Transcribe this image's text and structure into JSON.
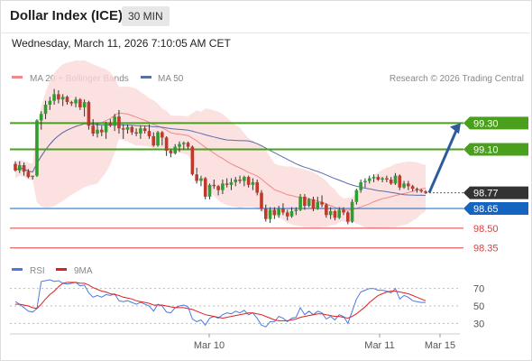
{
  "header": {
    "instrument": "Dollar Index (ICE)",
    "timeframe": "30 MIN",
    "timestamp": "Wednesday, March 11, 2026 7:10:05 AM CET"
  },
  "legend": {
    "bollinger_label": "MA 20 + Bollinger Bands",
    "ma50_label": "MA 50",
    "copyright": "Research © 2026 Trading Central",
    "rsi_label": "RSI",
    "rsi_ma_label": "9MA"
  },
  "colors": {
    "up_candle": "#2e9e2e",
    "down_candle": "#c0392b",
    "bollinger_band": "#fbd9d9",
    "ma20": "#f08a8a",
    "ma50": "#5a6ea8",
    "resistance": "#4aa01c",
    "pivot": "#1565c0",
    "support": "#e43b3b",
    "last_price": "#333333",
    "arrow": "#2e5b9e",
    "rsi": "#4a7ae0",
    "rsi_ma": "#e02020"
  },
  "chart_data": [
    {
      "type": "candlestick",
      "title": "Dollar Index (ICE)",
      "interval": "30 MIN",
      "x_ticks": [
        "Mar 10",
        "Mar 11",
        "Mar 15"
      ],
      "ylim": [
        98.3,
        99.55
      ],
      "levels": [
        {
          "label": "99.30",
          "value": 99.3,
          "kind": "resistance"
        },
        {
          "label": "99.10",
          "value": 99.1,
          "kind": "resistance"
        },
        {
          "label": "98.77",
          "value": 98.77,
          "kind": "last"
        },
        {
          "label": "98.65",
          "value": 98.65,
          "kind": "pivot"
        },
        {
          "label": "98.50",
          "value": 98.5,
          "kind": "support"
        },
        {
          "label": "98.35",
          "value": 98.35,
          "kind": "support"
        }
      ],
      "projection": {
        "from": 98.77,
        "to": 99.3
      },
      "candles": [
        [
          98.99,
          99.01,
          98.93,
          98.94
        ],
        [
          98.94,
          99.01,
          98.92,
          98.98
        ],
        [
          98.98,
          99.0,
          98.9,
          98.93
        ],
        [
          98.93,
          98.95,
          98.88,
          98.89
        ],
        [
          98.89,
          98.9,
          98.87,
          98.9
        ],
        [
          98.9,
          99.33,
          98.89,
          99.32
        ],
        [
          99.32,
          99.39,
          99.25,
          99.37
        ],
        [
          99.37,
          99.47,
          99.33,
          99.44
        ],
        [
          99.44,
          99.5,
          99.4,
          99.47
        ],
        [
          99.47,
          99.56,
          99.44,
          99.52
        ],
        [
          99.52,
          99.55,
          99.45,
          99.48
        ],
        [
          99.48,
          99.52,
          99.43,
          99.5
        ],
        [
          99.5,
          99.51,
          99.44,
          99.46
        ],
        [
          99.46,
          99.47,
          99.43,
          99.45
        ],
        [
          99.45,
          99.5,
          99.42,
          99.48
        ],
        [
          99.48,
          99.49,
          99.4,
          99.42
        ],
        [
          99.42,
          99.48,
          99.35,
          99.46
        ],
        [
          99.46,
          99.47,
          99.25,
          99.28
        ],
        [
          99.28,
          99.33,
          99.2,
          99.22
        ],
        [
          99.22,
          99.3,
          99.19,
          99.25
        ],
        [
          99.25,
          99.28,
          99.2,
          99.23
        ],
        [
          99.23,
          99.31,
          99.18,
          99.3
        ],
        [
          99.3,
          99.33,
          99.27,
          99.28
        ],
        [
          99.28,
          99.37,
          99.24,
          99.35
        ],
        [
          99.35,
          99.4,
          99.22,
          99.26
        ],
        [
          99.26,
          99.29,
          99.18,
          99.25
        ],
        [
          99.25,
          99.29,
          99.22,
          99.27
        ],
        [
          99.27,
          99.28,
          99.21,
          99.23
        ],
        [
          99.23,
          99.26,
          99.2,
          99.22
        ],
        [
          99.22,
          99.28,
          99.18,
          99.26
        ],
        [
          99.26,
          99.28,
          99.22,
          99.24
        ],
        [
          99.24,
          99.29,
          99.18,
          99.2
        ],
        [
          99.2,
          99.23,
          99.12,
          99.13
        ],
        [
          99.13,
          99.24,
          99.12,
          99.23
        ],
        [
          99.23,
          99.24,
          99.13,
          99.19
        ],
        [
          99.19,
          99.2,
          99.05,
          99.09
        ],
        [
          99.09,
          99.1,
          99.04,
          99.07
        ],
        [
          99.07,
          99.14,
          99.06,
          99.12
        ],
        [
          99.12,
          99.16,
          99.08,
          99.14
        ],
        [
          99.14,
          99.16,
          99.1,
          99.15
        ],
        [
          99.15,
          99.16,
          99.1,
          99.12
        ],
        [
          99.12,
          99.13,
          98.9,
          98.91
        ],
        [
          98.91,
          98.96,
          98.84,
          98.86
        ],
        [
          98.86,
          98.9,
          98.82,
          98.88
        ],
        [
          98.88,
          98.89,
          98.72,
          98.74
        ],
        [
          98.74,
          98.84,
          98.72,
          98.83
        ],
        [
          98.83,
          98.87,
          98.8,
          98.82
        ],
        [
          98.82,
          98.83,
          98.75,
          98.79
        ],
        [
          98.79,
          98.87,
          98.76,
          98.84
        ],
        [
          98.84,
          98.88,
          98.81,
          98.83
        ],
        [
          98.83,
          98.88,
          98.79,
          98.85
        ],
        [
          98.85,
          98.89,
          98.82,
          98.87
        ],
        [
          98.87,
          98.9,
          98.84,
          98.86
        ],
        [
          98.86,
          98.9,
          98.82,
          98.89
        ],
        [
          98.89,
          98.9,
          98.81,
          98.83
        ],
        [
          98.83,
          98.88,
          98.79,
          98.85
        ],
        [
          98.85,
          98.87,
          98.75,
          98.77
        ],
        [
          98.77,
          98.79,
          98.63,
          98.65
        ],
        [
          98.65,
          98.68,
          98.55,
          98.57
        ],
        [
          98.57,
          98.66,
          98.54,
          98.64
        ],
        [
          98.64,
          98.66,
          98.57,
          98.6
        ],
        [
          98.6,
          98.67,
          98.58,
          98.65
        ],
        [
          98.65,
          98.69,
          98.6,
          98.62
        ],
        [
          98.62,
          98.64,
          98.56,
          98.59
        ],
        [
          98.59,
          98.66,
          98.58,
          98.63
        ],
        [
          98.63,
          98.66,
          98.6,
          98.64
        ],
        [
          98.64,
          98.76,
          98.63,
          98.74
        ],
        [
          98.74,
          98.76,
          98.64,
          98.67
        ],
        [
          98.67,
          98.73,
          98.66,
          98.72
        ],
        [
          98.72,
          98.74,
          98.63,
          98.65
        ],
        [
          98.65,
          98.74,
          98.64,
          98.7
        ],
        [
          98.7,
          98.75,
          98.66,
          98.68
        ],
        [
          98.68,
          98.69,
          98.58,
          98.6
        ],
        [
          98.6,
          98.66,
          98.57,
          98.63
        ],
        [
          98.63,
          98.64,
          98.56,
          98.58
        ],
        [
          98.58,
          98.66,
          98.57,
          98.64
        ],
        [
          98.64,
          98.66,
          98.6,
          98.62
        ],
        [
          98.62,
          98.63,
          98.53,
          98.55
        ],
        [
          98.55,
          98.72,
          98.54,
          98.7
        ],
        [
          98.7,
          98.8,
          98.68,
          98.79
        ],
        [
          98.79,
          98.87,
          98.77,
          98.85
        ],
        [
          98.85,
          98.88,
          98.81,
          98.86
        ],
        [
          98.86,
          98.9,
          98.84,
          98.88
        ],
        [
          98.88,
          98.91,
          98.85,
          98.89
        ],
        [
          98.89,
          98.91,
          98.86,
          98.87
        ],
        [
          98.87,
          98.89,
          98.85,
          98.88
        ],
        [
          98.88,
          98.9,
          98.85,
          98.87
        ],
        [
          98.87,
          98.89,
          98.83,
          98.84
        ],
        [
          98.84,
          98.92,
          98.83,
          98.9
        ],
        [
          98.9,
          98.91,
          98.79,
          98.81
        ],
        [
          98.81,
          98.86,
          98.8,
          98.84
        ],
        [
          98.84,
          98.86,
          98.79,
          98.82
        ],
        [
          98.82,
          98.83,
          98.78,
          98.8
        ],
        [
          98.8,
          98.81,
          98.77,
          98.79
        ],
        [
          98.79,
          98.8,
          98.77,
          98.78
        ],
        [
          98.78,
          98.79,
          98.76,
          98.77
        ]
      ]
    },
    {
      "type": "line",
      "title": "RSI",
      "yticks": [
        70,
        50,
        30
      ],
      "ylim": [
        20,
        80
      ],
      "series": [
        {
          "name": "RSI",
          "values": [
            55,
            52,
            48,
            44,
            43,
            47,
            78,
            79,
            80,
            78,
            79,
            76,
            75,
            76,
            77,
            73,
            74,
            65,
            60,
            62,
            60,
            63,
            62,
            64,
            56,
            55,
            56,
            54,
            52,
            54,
            52,
            50,
            44,
            52,
            50,
            43,
            42,
            48,
            50,
            51,
            49,
            35,
            32,
            34,
            28,
            36,
            38,
            36,
            40,
            42,
            41,
            44,
            42,
            45,
            40,
            42,
            36,
            28,
            26,
            32,
            32,
            38,
            36,
            32,
            36,
            37,
            48,
            40,
            44,
            40,
            44,
            42,
            35,
            38,
            34,
            40,
            38,
            30,
            44,
            58,
            66,
            68,
            70,
            70,
            68,
            68,
            67,
            65,
            70,
            58,
            62,
            60,
            56,
            55,
            54,
            54
          ]
        },
        {
          "name": "9MA",
          "values": [
            52,
            52,
            51,
            50,
            48,
            47,
            52,
            58,
            63,
            67,
            72,
            76,
            77,
            77,
            77,
            76,
            76,
            74,
            71,
            69,
            67,
            66,
            64,
            63,
            62,
            60,
            59,
            58,
            56,
            55,
            54,
            53,
            51,
            51,
            51,
            50,
            49,
            48,
            48,
            48,
            47,
            46,
            44,
            42,
            40,
            39,
            38,
            37,
            36,
            37,
            38,
            39,
            40,
            41,
            42,
            42,
            41,
            40,
            38,
            36,
            34,
            33,
            33,
            33,
            34,
            35,
            37,
            38,
            39,
            40,
            41,
            41,
            40,
            39,
            38,
            38,
            37,
            36,
            38,
            41,
            45,
            49,
            54,
            58,
            62,
            64,
            66,
            67,
            67,
            66,
            65,
            64,
            62,
            60,
            58,
            56
          ]
        }
      ]
    }
  ]
}
